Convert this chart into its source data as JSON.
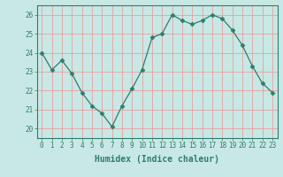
{
  "x": [
    0,
    1,
    2,
    3,
    4,
    5,
    6,
    7,
    8,
    9,
    10,
    11,
    12,
    13,
    14,
    15,
    16,
    17,
    18,
    19,
    20,
    21,
    22,
    23
  ],
  "y": [
    24.0,
    23.1,
    23.6,
    22.9,
    21.9,
    21.2,
    20.8,
    20.1,
    21.2,
    22.1,
    23.1,
    24.8,
    25.0,
    26.0,
    25.7,
    25.5,
    25.7,
    26.0,
    25.8,
    25.2,
    24.4,
    23.3,
    22.4,
    21.9
  ],
  "xlabel": "Humidex (Indice chaleur)",
  "ylabel": "",
  "ylim": [
    19.5,
    26.5
  ],
  "xlim": [
    -0.5,
    23.5
  ],
  "line_color": "#2e7d6e",
  "marker": "D",
  "marker_size": 2.5,
  "bg_color": "#c8e8e5",
  "grid_color": "#e8a0a0",
  "yticks": [
    20,
    21,
    22,
    23,
    24,
    25,
    26
  ],
  "xticks": [
    0,
    1,
    2,
    3,
    4,
    5,
    6,
    7,
    8,
    9,
    10,
    11,
    12,
    13,
    14,
    15,
    16,
    17,
    18,
    19,
    20,
    21,
    22,
    23
  ],
  "tick_color": "#2e7d6e",
  "xlabel_fontsize": 7,
  "tick_fontsize": 5.5
}
